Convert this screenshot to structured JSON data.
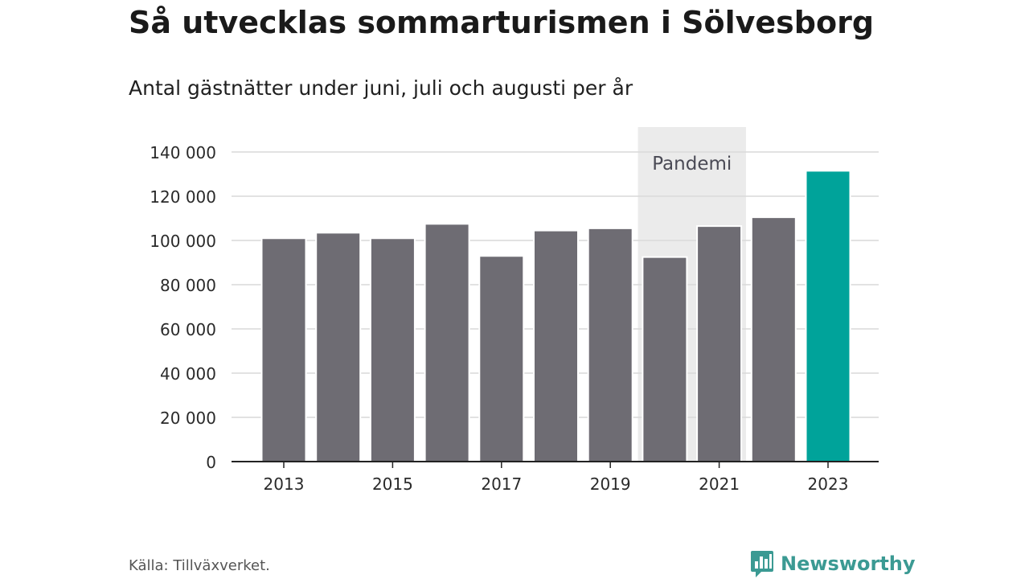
{
  "header": {
    "title": "Så utvecklas sommarturismen i Sölvesborg",
    "subtitle": "Antal gästnätter under juni, juli och augusti per år"
  },
  "footer": {
    "source": "Källa: Tillväxverket.",
    "brand": "Newsworthy"
  },
  "colors": {
    "bar": "#6e6c73",
    "highlight": "#00a39a",
    "band": "#ebebeb",
    "grid": "#d9d9d9",
    "brand": "#3b9a93"
  },
  "chart_data": {
    "type": "bar",
    "title": "Så utvecklas sommarturismen i Sölvesborg",
    "subtitle": "Antal gästnätter under juni, juli och augusti per år",
    "categories": [
      "2013",
      "2014",
      "2015",
      "2016",
      "2017",
      "2018",
      "2019",
      "2020",
      "2021",
      "2022",
      "2023"
    ],
    "values": [
      101000,
      103500,
      101000,
      107500,
      93000,
      104500,
      105500,
      92500,
      106500,
      110500,
      131500
    ],
    "highlight_category": "2023",
    "ylim": [
      0,
      140000
    ],
    "yticks": [
      0,
      20000,
      40000,
      60000,
      80000,
      100000,
      120000,
      140000
    ],
    "ytick_labels": [
      "0",
      "20 000",
      "40 000",
      "60 000",
      "80 000",
      "100 000",
      "120 000",
      "140 000"
    ],
    "xtick_labels": [
      "2013",
      "2015",
      "2017",
      "2019",
      "2021",
      "2023"
    ],
    "annotation": {
      "label": "Pandemi",
      "from": "2020",
      "to": "2021"
    },
    "grid": true,
    "legend": "none"
  }
}
